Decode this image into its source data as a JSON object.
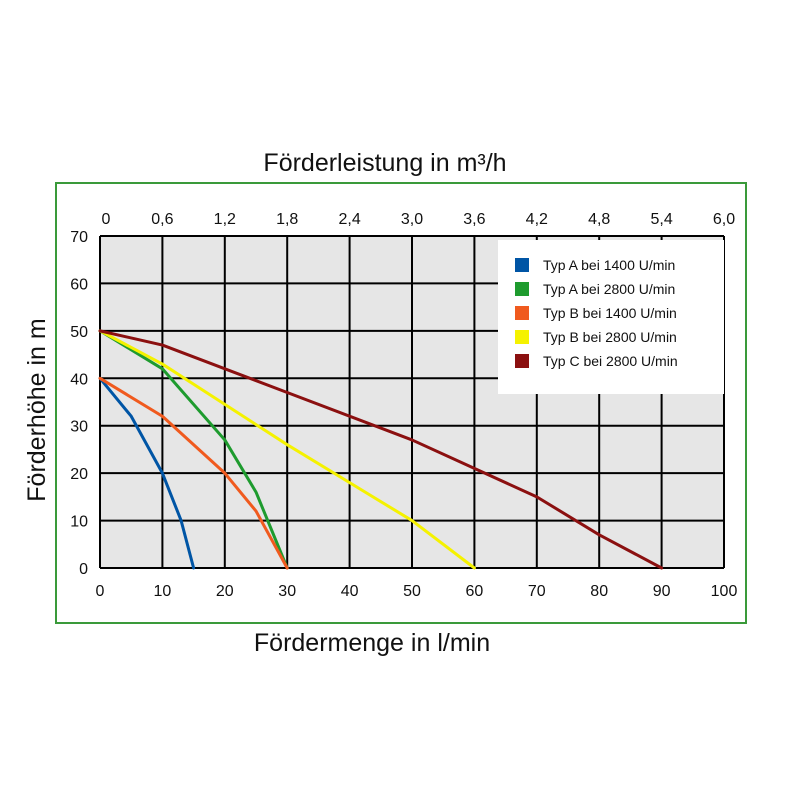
{
  "chart_data": {
    "type": "line",
    "title_top": "Förderleistung in m³/h",
    "xlabel": "Fördermenge in l/min",
    "ylabel": "Förderhöhe in m",
    "xlim": [
      0,
      100
    ],
    "ylim": [
      0,
      70
    ],
    "x_ticks": [
      "0",
      "10",
      "20",
      "30",
      "40",
      "50",
      "60",
      "70",
      "80",
      "90",
      "100"
    ],
    "x_top_ticks": [
      "0",
      "0,6",
      "1,2",
      "1,8",
      "2,4",
      "3,0",
      "3,6",
      "4,2",
      "4,8",
      "5,4",
      "6,0"
    ],
    "y_ticks": [
      "0",
      "10",
      "20",
      "30",
      "40",
      "50",
      "60",
      "70"
    ],
    "grid": true,
    "legend_position": "top-right",
    "series": [
      {
        "name": "Typ A bei 1400 U/min",
        "color": "#0055a5",
        "points": [
          [
            0,
            40
          ],
          [
            5,
            32
          ],
          [
            10,
            20
          ],
          [
            13,
            10
          ],
          [
            15,
            0
          ]
        ]
      },
      {
        "name": "Typ A bei 2800 U/min",
        "color": "#1e9b2e",
        "points": [
          [
            0,
            50
          ],
          [
            10,
            42
          ],
          [
            20,
            27
          ],
          [
            25,
            16
          ],
          [
            30,
            0
          ]
        ]
      },
      {
        "name": "Typ B bei 1400 U/min",
        "color": "#f05a1e",
        "points": [
          [
            0,
            40
          ],
          [
            10,
            32
          ],
          [
            20,
            20
          ],
          [
            25,
            12
          ],
          [
            30,
            0
          ]
        ]
      },
      {
        "name": "Typ B bei 2800 U/min",
        "color": "#f5f200",
        "points": [
          [
            0,
            50
          ],
          [
            10,
            43
          ],
          [
            30,
            26
          ],
          [
            40,
            18
          ],
          [
            50,
            10
          ],
          [
            60,
            0
          ]
        ]
      },
      {
        "name": "Typ C bei 2800 U/min",
        "color": "#8b1010",
        "points": [
          [
            0,
            50
          ],
          [
            10,
            47
          ],
          [
            30,
            37
          ],
          [
            50,
            27
          ],
          [
            70,
            15
          ],
          [
            80,
            7
          ],
          [
            90,
            0
          ]
        ]
      }
    ]
  }
}
